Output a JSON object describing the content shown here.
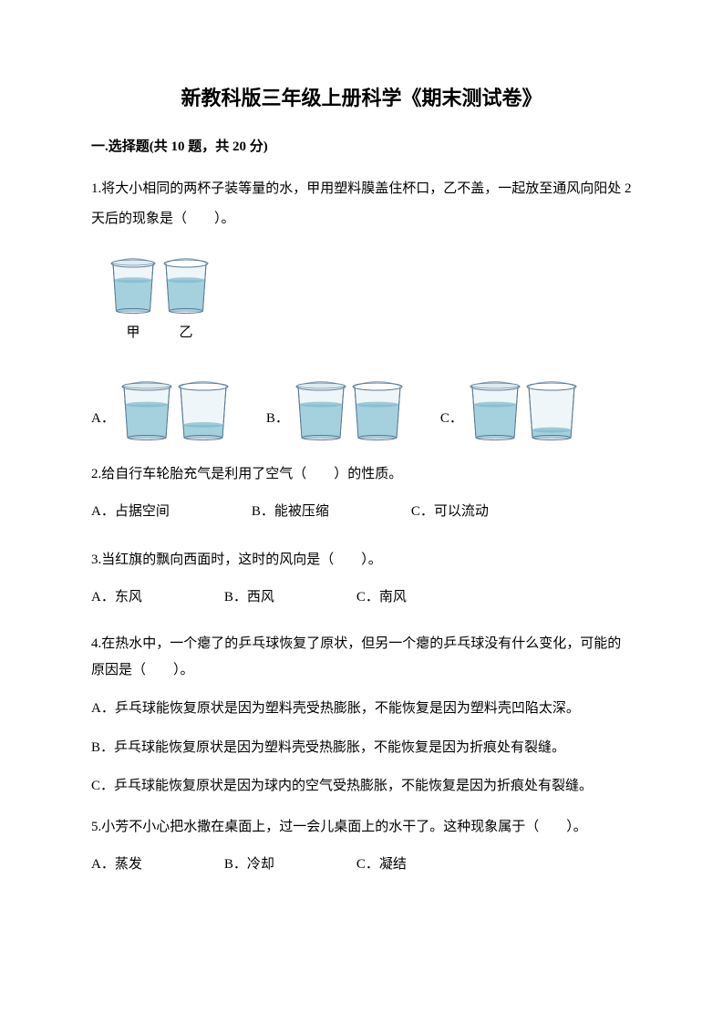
{
  "title": "新教科版三年级上册科学《期末测试卷》",
  "section": {
    "label": "一.选择题(共 10 题，共 20 分)"
  },
  "q1": {
    "text": "1.将大小相同的两杯子装等量的水，甲用塑料膜盖住杯口，乙不盖，一起放至通风向阳处 2 天后的现象是（　　）。",
    "setup": {
      "cup1_label": "甲",
      "cup2_label": "乙"
    },
    "optA": "A．",
    "optB": "B．",
    "optC": "C．",
    "cup_colors": {
      "rim": "#6a8fb5",
      "body": "#9ec8d8",
      "water": "#a5d0de",
      "water_dark": "#7fb8ca",
      "outline": "#5a7a95"
    },
    "cup_dims": {
      "setup_w": 44,
      "setup_h": 60,
      "opt_w": 50,
      "opt_h": 64
    },
    "water_levels": {
      "setup1": 0.65,
      "setup2": 0.65,
      "A1": 0.65,
      "A2": 0.25,
      "B1": 0.65,
      "B2": 0.65,
      "C1": 0.65,
      "C2": 0.15
    },
    "has_lid": {
      "setup1": true,
      "setup2": false,
      "A1": true,
      "A2": false,
      "B1": true,
      "B2": false,
      "C1": true,
      "C2": false
    }
  },
  "q2": {
    "text": "2.给自行车轮胎充气是利用了空气（　　）的性质。",
    "A": "A．占据空间",
    "B": "B．能被压缩",
    "C": "C．可以流动"
  },
  "q3": {
    "text": "3.当红旗的飘向西面时，这时的风向是（　　）。",
    "A": "A．东风",
    "B": "B．西风",
    "C": "C．南风"
  },
  "q4": {
    "text": "4.在热水中，一个瘪了的乒乓球恢复了原状，但另一个瘪的乒乓球没有什么变化，可能的原因是（　　）。",
    "A": "A．乒乓球能恢复原状是因为塑料壳受热膨胀，不能恢复是因为塑料壳凹陷太深。",
    "B": "B．乒乓球能恢复原状是因为塑料壳受热膨胀，不能恢复是因为折痕处有裂缝。",
    "C": "C．乒乓球能恢复原状是因为球内的空气受热膨胀，不能恢复是因为折痕处有裂缝。"
  },
  "q5": {
    "text": "5.小芳不小心把水撒在桌面上，过一会儿桌面上的水干了。这种现象属于（　　）。",
    "A": "A．蒸发",
    "B": "B．冷却",
    "C": "C．凝结"
  }
}
